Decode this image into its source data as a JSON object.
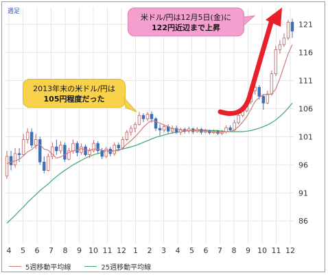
{
  "period_label": "週足",
  "colors": {
    "up": "#ffffff",
    "up_border": "#c06060",
    "down": "#3f6fb0",
    "ma5": "#d07a7a",
    "ma25": "#3aa66a",
    "arrow": "#e8202a",
    "grid": "#e6e6e6"
  },
  "callouts": {
    "top_line1": "米ドル/円は12月5日(金)に",
    "top_line2": "122円近辺まで上昇",
    "left_line1": "2013年末の米ドル/円は",
    "left_line2": "105円程度だった"
  },
  "legend": {
    "ma5": "5週移動平均線",
    "ma25": "25週移動平均線"
  },
  "chart_data": {
    "type": "candlestick",
    "title": "",
    "x_tick_labels": [
      "4",
      "5",
      "6",
      "7",
      "8",
      "9",
      "10",
      "11",
      "12",
      "1",
      "2",
      "3",
      "4",
      "5",
      "6",
      "7",
      "8",
      "9",
      "10",
      "11",
      "12"
    ],
    "y_ticks": [
      86,
      91,
      96,
      101,
      106,
      111,
      116,
      121
    ],
    "ylim": [
      82,
      124
    ],
    "y_axis_position": "right",
    "grid": true,
    "legend_position": "bottom-left",
    "candles": [
      [
        94,
        97.5,
        93.5,
        98.5
      ],
      [
        97.5,
        96,
        95,
        98.5
      ],
      [
        96,
        98,
        95.5,
        99
      ],
      [
        98,
        97.8,
        96.5,
        99
      ],
      [
        97.8,
        100.5,
        97.5,
        101.5
      ],
      [
        100.5,
        101.8,
        99.8,
        102.5
      ],
      [
        101.8,
        99.5,
        99,
        102.5
      ],
      [
        99.5,
        100.5,
        98.8,
        101.5
      ],
      [
        100.5,
        96.5,
        96,
        101
      ],
      [
        96.5,
        95,
        94.5,
        97.5
      ],
      [
        95,
        97.5,
        94.8,
        98
      ],
      [
        97.5,
        99.2,
        97,
        100
      ],
      [
        99.2,
        98.5,
        97.8,
        100.5
      ],
      [
        98.5,
        99.5,
        98,
        100.2
      ],
      [
        99.5,
        97,
        96.5,
        100
      ],
      [
        97,
        98.5,
        96.8,
        99
      ],
      [
        98.5,
        99.8,
        98,
        100.5
      ],
      [
        99.8,
        98.2,
        97.5,
        100.2
      ],
      [
        98.2,
        99.2,
        97.8,
        99.8
      ],
      [
        99.2,
        97.8,
        97.5,
        99.6
      ],
      [
        97.8,
        98.5,
        97.2,
        99
      ],
      [
        98.5,
        99.8,
        98.2,
        100.4
      ],
      [
        99.8,
        98.5,
        98,
        100.2
      ],
      [
        98.5,
        97.5,
        97,
        99
      ],
      [
        97.5,
        98.8,
        97.2,
        99.2
      ],
      [
        98.8,
        98,
        97.5,
        99.2
      ],
      [
        98,
        99.5,
        97.6,
        100
      ],
      [
        99.5,
        99,
        98.6,
        100
      ],
      [
        99,
        100.5,
        98.8,
        101
      ],
      [
        100.5,
        101.8,
        100.2,
        102.2
      ],
      [
        101.8,
        102.5,
        101.2,
        103
      ],
      [
        102.5,
        103.2,
        101.8,
        103.6
      ],
      [
        103.2,
        104.8,
        103,
        105.4
      ],
      [
        104.8,
        104.2,
        103.6,
        105.2
      ],
      [
        104.2,
        105,
        103.8,
        105.4
      ],
      [
        105,
        104.2,
        103.5,
        105.5
      ],
      [
        104.2,
        102.5,
        102,
        104.5
      ],
      [
        102.5,
        102.2,
        101.2,
        103.2
      ],
      [
        102.2,
        102.8,
        101.8,
        103.2
      ],
      [
        102.8,
        102,
        101.6,
        103.2
      ],
      [
        102,
        102.5,
        101.5,
        103
      ],
      [
        102.5,
        101.8,
        101.5,
        103
      ],
      [
        101.8,
        102.3,
        101.3,
        102.6
      ],
      [
        102.3,
        102,
        101.6,
        102.6
      ],
      [
        102,
        102.4,
        101.6,
        102.8
      ],
      [
        102.4,
        101.9,
        101.5,
        102.6
      ],
      [
        101.9,
        102.3,
        101.7,
        102.7
      ],
      [
        102.3,
        101.8,
        101.4,
        102.6
      ],
      [
        101.8,
        102.1,
        101.6,
        102.4
      ],
      [
        102.1,
        101.7,
        101.4,
        102.3
      ],
      [
        101.7,
        102,
        101.5,
        102.3
      ],
      [
        102,
        101.6,
        101.3,
        102.2
      ],
      [
        101.6,
        101.9,
        101.3,
        102.2
      ],
      [
        101.9,
        102.6,
        101.6,
        103
      ],
      [
        102.6,
        102.2,
        101.9,
        103
      ],
      [
        102.2,
        103.5,
        102,
        104
      ],
      [
        103.5,
        104.8,
        103.2,
        105.2
      ],
      [
        104.8,
        105.6,
        104.5,
        106
      ],
      [
        105.6,
        107.2,
        105.3,
        107.6
      ],
      [
        107.2,
        109.2,
        106.8,
        109.6
      ],
      [
        109.2,
        109.8,
        108.5,
        110.4
      ],
      [
        109.8,
        108.2,
        107.6,
        110.2
      ],
      [
        108.2,
        107,
        105.8,
        108.6
      ],
      [
        107,
        108.6,
        106.8,
        109.2
      ],
      [
        108.6,
        112.2,
        108.3,
        112.8
      ],
      [
        112.2,
        116.5,
        111.8,
        117.2
      ],
      [
        116.5,
        117.4,
        115.8,
        118.2
      ],
      [
        117.4,
        118.6,
        117,
        119.4
      ],
      [
        118.6,
        121.4,
        118.2,
        121.8
      ],
      [
        121.4,
        119.8,
        118.6,
        122
      ]
    ],
    "candle_format": [
      "open",
      "close",
      "low",
      "high"
    ],
    "ma5": [
      96.2,
      96.5,
      96.7,
      97,
      97.6,
      98.3,
      98.7,
      99.4,
      99.6,
      98.8,
      98.6,
      97.9,
      97.2,
      97.4,
      97.8,
      98.2,
      98.5,
      98.6,
      98.9,
      98.6,
      98.6,
      98.8,
      98.8,
      98.6,
      98.5,
      98.3,
      98.5,
      98.5,
      99,
      99.7,
      100.3,
      101,
      101.8,
      102.7,
      103.4,
      103.9,
      103.7,
      103.4,
      103.1,
      102.8,
      102.4,
      102.4,
      102.2,
      102.1,
      102.1,
      102.1,
      102.1,
      102,
      102,
      101.9,
      101.9,
      101.8,
      101.8,
      101.9,
      101.9,
      102.2,
      102.8,
      103.6,
      104.6,
      105.9,
      107.3,
      108,
      108.5,
      108.5,
      108.6,
      109.5,
      111.4,
      113.6,
      115.8,
      117.4
    ],
    "ma25": [
      85.6,
      86.3,
      87,
      87.8,
      88.5,
      89.3,
      90,
      90.7,
      91.4,
      92,
      92.6,
      93.3,
      93.9,
      94.5,
      95,
      95.5,
      96,
      96.4,
      96.8,
      97.2,
      97.5,
      97.8,
      98,
      98.2,
      98.4,
      98.5,
      98.6,
      98.7,
      98.8,
      99,
      99.2,
      99.4,
      99.7,
      100,
      100.3,
      100.6,
      100.9,
      101.1,
      101.3,
      101.5,
      101.7,
      101.8,
      101.9,
      102,
      102.1,
      102.1,
      102.2,
      102.2,
      102.2,
      102.1,
      102.1,
      102.1,
      102,
      102,
      101.9,
      101.9,
      101.9,
      101.9,
      102,
      102.1,
      102.3,
      102.5,
      102.8,
      103.1,
      103.5,
      104,
      104.6,
      105.3,
      106.1,
      107
    ]
  }
}
